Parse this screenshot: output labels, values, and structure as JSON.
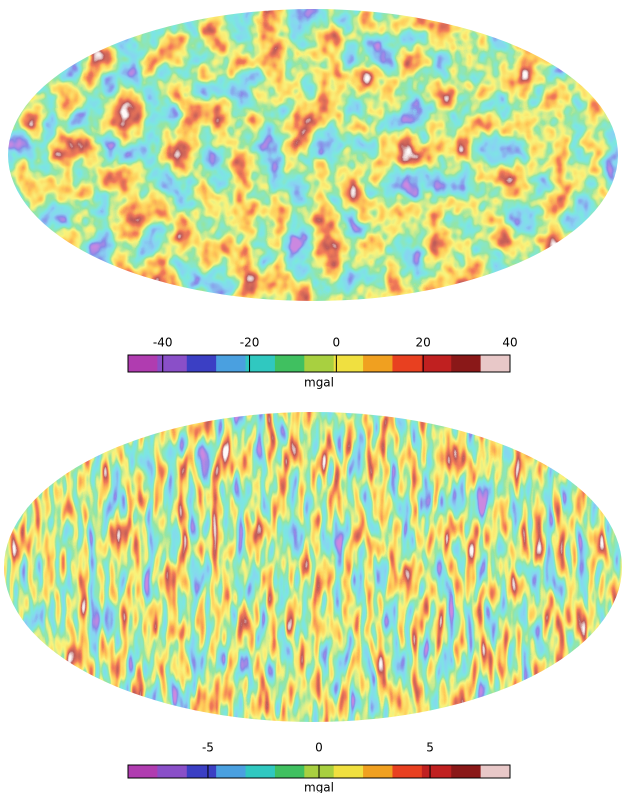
{
  "maps": [
    {
      "colorbar": {
        "lim": [
          -48,
          40
        ],
        "ticks": [
          -40,
          -20,
          0,
          20,
          40
        ],
        "label": "mgal",
        "colors": [
          "#b03cb0",
          "#8a4fc8",
          "#3b3fc4",
          "#4aa0e0",
          "#30c8c0",
          "#40c060",
          "#a8d040",
          "#f0e040",
          "#f0a020",
          "#e84020",
          "#c02020",
          "#8a1818",
          "#e8c8c8"
        ]
      }
    },
    {
      "colorbar": {
        "lim": [
          -8.6,
          8.6
        ],
        "ticks": [
          -5,
          0,
          5
        ],
        "label": "mgal",
        "colors": [
          "#b03cb0",
          "#8a4fc8",
          "#3b3fc4",
          "#4aa0e0",
          "#30c8c0",
          "#40c060",
          "#a8d040",
          "#f0e040",
          "#f0a020",
          "#e84020",
          "#c02020",
          "#8a1818",
          "#e8c8c8"
        ]
      }
    }
  ]
}
